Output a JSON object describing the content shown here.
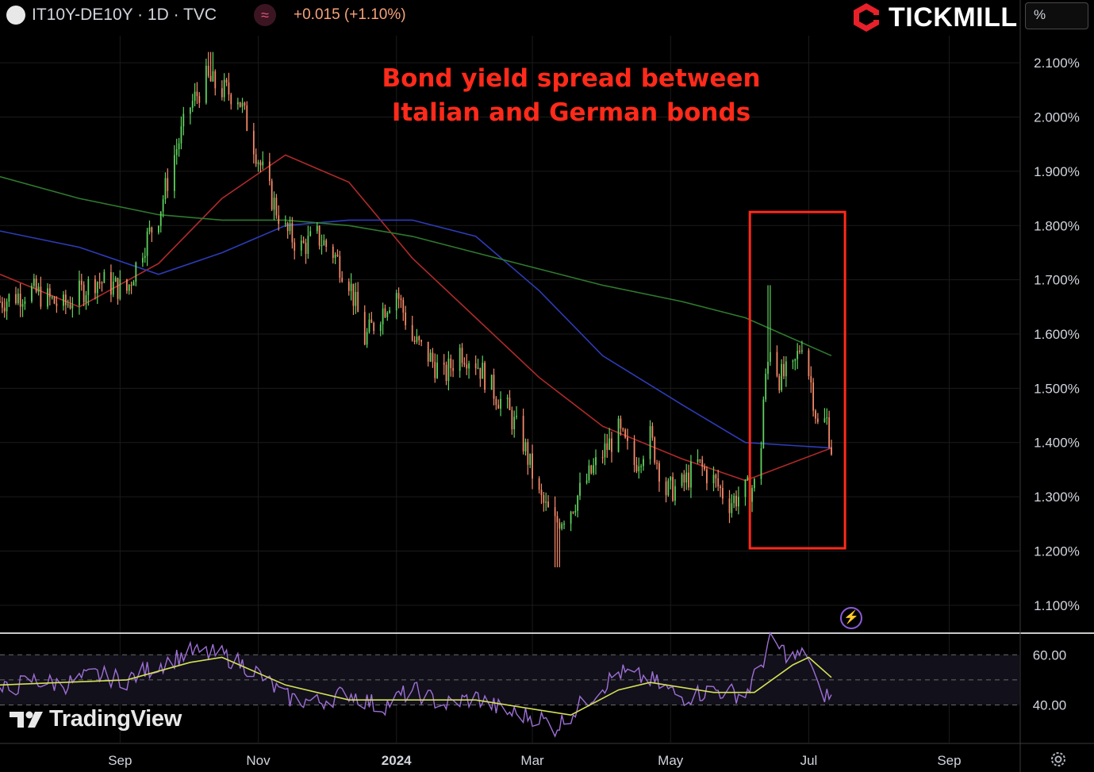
{
  "header": {
    "symbol": "IT10Y-DE10Y · 1D · TVC",
    "change": "+0.015 (+1.10%)",
    "indicator_icon": "wave-icon",
    "unit_button": "%"
  },
  "brand": {
    "name": "TICKMILL",
    "icon": "tickmill-hexagon-logo"
  },
  "annotation": {
    "line1": "Bond yield spread between",
    "line2": "Italian and German bonds"
  },
  "watermark": {
    "text": "TradingView",
    "icon": "tradingview-logo"
  },
  "colors": {
    "up": "#5fd35f",
    "down": "#f58a6a",
    "ma50": "#b02a2a",
    "ma100": "#2d3cb8",
    "ma200": "#2e7a2e",
    "highlight": "#ff2a1a",
    "rsi": "#9d6fd6",
    "rsi_ma": "#d4e157"
  },
  "chart_data": [
    {
      "type": "candlestick",
      "title": "",
      "xlabel": "",
      "ylabel": "",
      "x_ticks": [
        {
          "label": "Sep",
          "date": "2023-09-01"
        },
        {
          "label": "Nov",
          "date": "2023-11-01"
        },
        {
          "label": "2024",
          "date": "2024-01-01"
        },
        {
          "label": "Mar",
          "date": "2024-03-01"
        },
        {
          "label": "May",
          "date": "2024-05-01"
        },
        {
          "label": "Jul",
          "date": "2024-07-01"
        },
        {
          "label": "Sep",
          "date": "2024-09-01"
        }
      ],
      "y_ticks": [
        "2.100%",
        "2.000%",
        "1.900%",
        "1.800%",
        "1.700%",
        "1.600%",
        "1.500%",
        "1.400%",
        "1.300%",
        "1.200%",
        "1.100%"
      ],
      "xlim": [
        "2023-07-10",
        "2024-10-02"
      ],
      "ylim": [
        1.05,
        2.15
      ],
      "close": [
        [
          "2023-07-10",
          1.66
        ],
        [
          "2023-07-24",
          1.68
        ],
        [
          "2023-08-07",
          1.65
        ],
        [
          "2023-08-21",
          1.7
        ],
        [
          "2023-09-04",
          1.68
        ],
        [
          "2023-09-11",
          1.76
        ],
        [
          "2023-09-18",
          1.82
        ],
        [
          "2023-09-25",
          1.93
        ],
        [
          "2023-10-02",
          2.02
        ],
        [
          "2023-10-09",
          2.07
        ],
        [
          "2023-10-16",
          2.05
        ],
        [
          "2023-10-23",
          2.04
        ],
        [
          "2023-10-30",
          1.95
        ],
        [
          "2023-11-06",
          1.86
        ],
        [
          "2023-11-13",
          1.79
        ],
        [
          "2023-11-20",
          1.76
        ],
        [
          "2023-11-27",
          1.78
        ],
        [
          "2023-12-04",
          1.75
        ],
        [
          "2023-12-11",
          1.7
        ],
        [
          "2023-12-18",
          1.59
        ],
        [
          "2023-12-25",
          1.64
        ],
        [
          "2024-01-01",
          1.68
        ],
        [
          "2024-01-08",
          1.59
        ],
        [
          "2024-01-15",
          1.56
        ],
        [
          "2024-01-22",
          1.52
        ],
        [
          "2024-01-29",
          1.57
        ],
        [
          "2024-02-05",
          1.55
        ],
        [
          "2024-02-12",
          1.5
        ],
        [
          "2024-02-19",
          1.46
        ],
        [
          "2024-02-26",
          1.4
        ],
        [
          "2024-03-04",
          1.3
        ],
        [
          "2024-03-11",
          1.25
        ],
        [
          "2024-03-18",
          1.28
        ],
        [
          "2024-03-25",
          1.33
        ],
        [
          "2024-04-01",
          1.38
        ],
        [
          "2024-04-08",
          1.42
        ],
        [
          "2024-04-15",
          1.36
        ],
        [
          "2024-04-22",
          1.41
        ],
        [
          "2024-04-29",
          1.31
        ],
        [
          "2024-05-06",
          1.32
        ],
        [
          "2024-05-13",
          1.36
        ],
        [
          "2024-05-20",
          1.33
        ],
        [
          "2024-05-27",
          1.29
        ],
        [
          "2024-06-03",
          1.31
        ],
        [
          "2024-06-07",
          1.32
        ],
        [
          "2024-06-10",
          1.4
        ],
        [
          "2024-06-11",
          1.48
        ],
        [
          "2024-06-14",
          1.58
        ],
        [
          "2024-06-18",
          1.52
        ],
        [
          "2024-06-24",
          1.53
        ],
        [
          "2024-06-28",
          1.59
        ],
        [
          "2024-07-02",
          1.51
        ],
        [
          "2024-07-05",
          1.43
        ],
        [
          "2024-07-09",
          1.44
        ],
        [
          "2024-07-11",
          1.39
        ]
      ],
      "high": [
        [
          "2023-10-11",
          2.12
        ],
        [
          "2024-06-14",
          1.69
        ]
      ],
      "low": [
        [
          "2024-03-12",
          1.17
        ]
      ],
      "series": [
        {
          "values": [
            [
              "2023-07-10",
              1.71
            ],
            [
              "2023-08-14",
              1.65
            ],
            [
              "2023-09-18",
              1.73
            ],
            [
              "2023-10-16",
              1.85
            ],
            [
              "2023-11-13",
              1.93
            ],
            [
              "2023-12-11",
              1.88
            ],
            [
              "2024-01-08",
              1.74
            ],
            [
              "2024-02-05",
              1.63
            ],
            [
              "2024-03-04",
              1.52
            ],
            [
              "2024-04-01",
              1.43
            ],
            [
              "2024-05-06",
              1.37
            ],
            [
              "2024-06-03",
              1.33
            ],
            [
              "2024-07-11",
              1.39
            ]
          ]
        },
        {
          "values": [
            [
              "2023-07-10",
              1.79
            ],
            [
              "2023-08-14",
              1.76
            ],
            [
              "2023-09-18",
              1.71
            ],
            [
              "2023-10-16",
              1.75
            ],
            [
              "2023-11-13",
              1.8
            ],
            [
              "2023-12-11",
              1.81
            ],
            [
              "2024-01-08",
              1.81
            ],
            [
              "2024-02-05",
              1.78
            ],
            [
              "2024-03-04",
              1.68
            ],
            [
              "2024-04-01",
              1.56
            ],
            [
              "2024-05-06",
              1.47
            ],
            [
              "2024-06-03",
              1.4
            ],
            [
              "2024-07-11",
              1.39
            ]
          ]
        },
        {
          "values": [
            [
              "2023-07-10",
              1.89
            ],
            [
              "2023-08-14",
              1.85
            ],
            [
              "2023-09-18",
              1.82
            ],
            [
              "2023-10-16",
              1.81
            ],
            [
              "2023-11-13",
              1.81
            ],
            [
              "2023-12-11",
              1.8
            ],
            [
              "2024-01-08",
              1.78
            ],
            [
              "2024-02-05",
              1.75
            ],
            [
              "2024-03-04",
              1.72
            ],
            [
              "2024-04-01",
              1.69
            ],
            [
              "2024-05-06",
              1.66
            ],
            [
              "2024-06-03",
              1.63
            ],
            [
              "2024-07-11",
              1.56
            ]
          ]
        }
      ],
      "highlight_box": {
        "x": [
          "2024-06-05",
          "2024-07-17"
        ],
        "y": [
          1.205,
          1.825
        ]
      }
    },
    {
      "type": "line",
      "title": "",
      "y_ticks": [
        "60.00",
        "40.00"
      ],
      "ylim": [
        25,
        68
      ],
      "guides": [
        60,
        50,
        40
      ],
      "series": [
        {
          "values": [
            [
              "2023-07-10",
              45
            ],
            [
              "2023-07-24",
              50
            ],
            [
              "2023-08-07",
              48
            ],
            [
              "2023-08-21",
              52
            ],
            [
              "2023-09-04",
              50
            ],
            [
              "2023-09-18",
              56
            ],
            [
              "2023-10-02",
              61
            ],
            [
              "2023-10-16",
              60
            ],
            [
              "2023-10-30",
              54
            ],
            [
              "2023-11-13",
              43
            ],
            [
              "2023-11-27",
              41
            ],
            [
              "2023-12-11",
              45
            ],
            [
              "2023-12-25",
              39
            ],
            [
              "2024-01-08",
              46
            ],
            [
              "2024-01-22",
              40
            ],
            [
              "2024-02-05",
              43
            ],
            [
              "2024-02-19",
              37
            ],
            [
              "2024-03-04",
              35
            ],
            [
              "2024-03-11",
              31
            ],
            [
              "2024-03-25",
              42
            ],
            [
              "2024-04-08",
              53
            ],
            [
              "2024-04-22",
              50
            ],
            [
              "2024-05-06",
              43
            ],
            [
              "2024-05-20",
              46
            ],
            [
              "2024-06-03",
              44
            ],
            [
              "2024-06-10",
              56
            ],
            [
              "2024-06-14",
              65
            ],
            [
              "2024-06-24",
              59
            ],
            [
              "2024-07-01",
              60
            ],
            [
              "2024-07-05",
              46
            ],
            [
              "2024-07-11",
              43
            ]
          ]
        },
        {
          "values": [
            [
              "2023-07-10",
              48
            ],
            [
              "2023-08-07",
              49
            ],
            [
              "2023-09-04",
              50
            ],
            [
              "2023-10-02",
              57
            ],
            [
              "2023-10-16",
              59
            ],
            [
              "2023-11-13",
              48
            ],
            [
              "2023-12-11",
              42
            ],
            [
              "2024-01-08",
              42
            ],
            [
              "2024-02-05",
              42
            ],
            [
              "2024-03-04",
              38
            ],
            [
              "2024-03-18",
              36
            ],
            [
              "2024-04-08",
              46
            ],
            [
              "2024-04-22",
              49
            ],
            [
              "2024-05-20",
              45
            ],
            [
              "2024-06-07",
              45
            ],
            [
              "2024-06-24",
              56
            ],
            [
              "2024-07-01",
              59
            ],
            [
              "2024-07-11",
              51
            ]
          ]
        }
      ]
    }
  ]
}
